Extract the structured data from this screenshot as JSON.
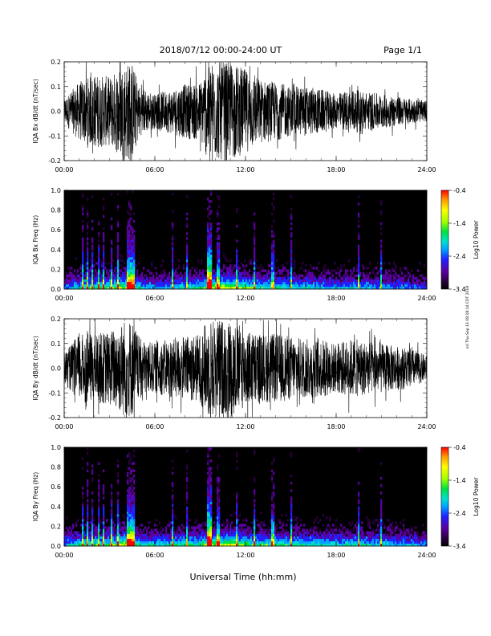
{
  "header": {
    "title": "2018/07/12  00:00-24:00 UT",
    "page": "Page 1/1"
  },
  "footer": {
    "xlabel": "Universal Time (hh:mm)"
  },
  "side_note": "ssl Thu Sep 13 08:18:14 CDT 2018",
  "colors": {
    "trace": "#000000",
    "colormap": [
      "#000000",
      "#2a0040",
      "#5a00a0",
      "#2020ff",
      "#00a0ff",
      "#00e0d0",
      "#00e040",
      "#a0ff00",
      "#ffff00",
      "#ffa000",
      "#ff0000"
    ]
  },
  "chart_data": [
    {
      "type": "line",
      "ylabel": "IQA Bx dB/dt (nT/sec)",
      "xlim": [
        0,
        24
      ],
      "ylim": [
        -0.2,
        0.2
      ],
      "xticks": [
        "00:00",
        "06:00",
        "12:00",
        "18:00",
        "24:00"
      ],
      "yticks": [
        "-0.2",
        "-0.1",
        "0.0",
        "0.1",
        "0.2"
      ],
      "envelope_hours": [
        0,
        1,
        2,
        3,
        4,
        4.5,
        5,
        6,
        7,
        8,
        9,
        9.5,
        10,
        11,
        12,
        13,
        14,
        15,
        16,
        17,
        18,
        19,
        20,
        21,
        22,
        23,
        24
      ],
      "envelope_amplitude": [
        0.05,
        0.12,
        0.15,
        0.14,
        0.2,
        0.2,
        0.1,
        0.07,
        0.09,
        0.11,
        0.12,
        0.2,
        0.2,
        0.2,
        0.17,
        0.13,
        0.12,
        0.1,
        0.1,
        0.09,
        0.07,
        0.09,
        0.08,
        0.07,
        0.06,
        0.05,
        0.04
      ]
    },
    {
      "type": "heatmap",
      "ylabel": "IQA Bx Freq (Hz)",
      "xlim": [
        0,
        24
      ],
      "ylim": [
        0,
        1.0
      ],
      "xticks": [
        "00:00",
        "06:00",
        "12:00",
        "18:00",
        "24:00"
      ],
      "yticks": [
        "0.0",
        "0.2",
        "0.4",
        "0.6",
        "0.8",
        "1.0"
      ],
      "colorbar": {
        "label": "Log10 Power",
        "ticks": [
          "-0.4",
          "-1.4",
          "-2.4",
          "-3.4"
        ],
        "range": [
          -3.4,
          -0.4
        ]
      }
    },
    {
      "type": "line",
      "ylabel": "IQA By dB/dt (nT/sec)",
      "xlim": [
        0,
        24
      ],
      "ylim": [
        -0.2,
        0.2
      ],
      "xticks": [
        "00:00",
        "06:00",
        "12:00",
        "18:00",
        "24:00"
      ],
      "yticks": [
        "-0.2",
        "-0.1",
        "0.0",
        "0.1",
        "0.2"
      ],
      "envelope_hours": [
        0,
        1,
        2,
        3,
        4,
        4.5,
        5,
        6,
        7,
        8,
        9,
        9.5,
        10,
        11,
        12,
        13,
        14,
        15,
        16,
        17,
        18,
        19,
        20,
        21,
        22,
        23,
        24
      ],
      "envelope_amplitude": [
        0.06,
        0.14,
        0.14,
        0.15,
        0.2,
        0.2,
        0.12,
        0.1,
        0.12,
        0.13,
        0.14,
        0.2,
        0.2,
        0.2,
        0.16,
        0.14,
        0.14,
        0.13,
        0.12,
        0.12,
        0.1,
        0.12,
        0.11,
        0.1,
        0.09,
        0.08,
        0.05
      ]
    },
    {
      "type": "heatmap",
      "ylabel": "IQA By Freq (Hz)",
      "xlim": [
        0,
        24
      ],
      "ylim": [
        0,
        1.0
      ],
      "xticks": [
        "00:00",
        "06:00",
        "12:00",
        "18:00",
        "24:00"
      ],
      "yticks": [
        "0.0",
        "0.2",
        "0.4",
        "0.6",
        "0.8",
        "1.0"
      ],
      "colorbar": {
        "label": "Log10 Power",
        "ticks": [
          "-0.4",
          "-1.4",
          "-2.4",
          "-3.4"
        ],
        "range": [
          -3.4,
          -0.4
        ]
      }
    }
  ]
}
